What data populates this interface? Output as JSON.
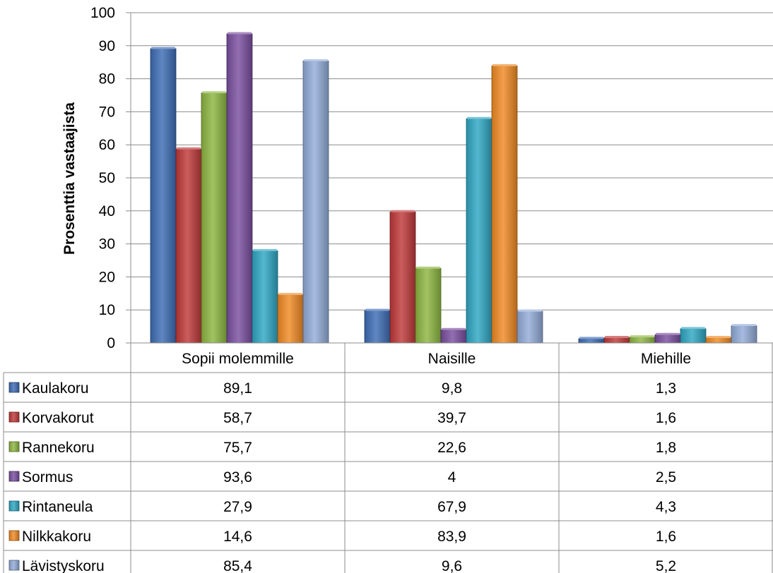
{
  "chart_data": {
    "type": "bar",
    "title": "",
    "xlabel": "",
    "ylabel": "Prosenttia vastaajista",
    "ylim": [
      0,
      100
    ],
    "yticks": [
      0,
      10,
      20,
      30,
      40,
      50,
      60,
      70,
      80,
      90,
      100
    ],
    "grid": true,
    "legend": "data-table-below",
    "categories": [
      "Sopii molemmille",
      "Naisille",
      "Miehille"
    ],
    "series": [
      {
        "name": "Kaulakoru",
        "color": "#3d6db5",
        "values": [
          89.1,
          9.8,
          1.3
        ],
        "labels": [
          "89,1",
          "9,8",
          "1,3"
        ]
      },
      {
        "name": "Korvakorut",
        "color": "#c0393a",
        "values": [
          58.7,
          39.7,
          1.6
        ],
        "labels": [
          "58,7",
          "39,7",
          "1,6"
        ]
      },
      {
        "name": "Rannekoru",
        "color": "#8db641",
        "values": [
          75.7,
          22.6,
          1.8
        ],
        "labels": [
          "75,7",
          "22,6",
          "1,8"
        ]
      },
      {
        "name": "Sormus",
        "color": "#7a4fa0",
        "values": [
          93.6,
          4,
          2.5
        ],
        "labels": [
          "93,6",
          "4",
          "2,5"
        ]
      },
      {
        "name": "Rintaneula",
        "color": "#2fa7c3",
        "values": [
          27.9,
          67.9,
          4.3
        ],
        "labels": [
          "27,9",
          "67,9",
          "4,3"
        ]
      },
      {
        "name": "Nilkkakoru",
        "color": "#f08a24",
        "values": [
          14.6,
          83.9,
          1.6
        ],
        "labels": [
          "14,6",
          "83,9",
          "1,6"
        ]
      },
      {
        "name": "Lävistyskoru",
        "color": "#92acd8",
        "values": [
          85.4,
          9.6,
          5.2
        ],
        "labels": [
          "85,4",
          "9,6",
          "5,2"
        ]
      }
    ]
  }
}
